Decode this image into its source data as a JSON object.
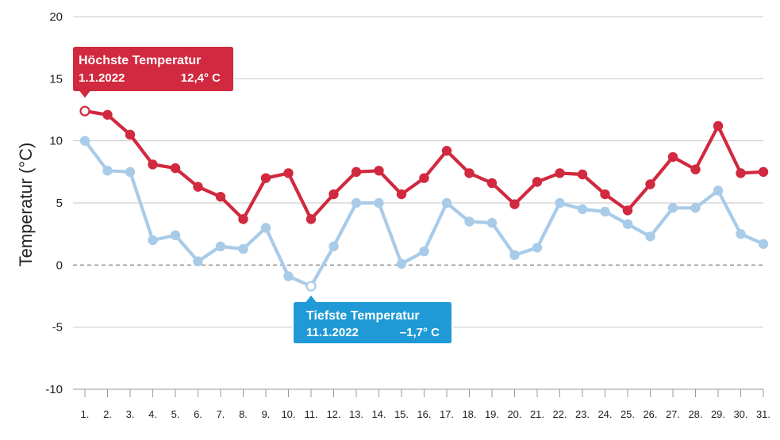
{
  "chart_data": {
    "type": "line",
    "ylabel": "Temperatur (°C)",
    "xlabel": "",
    "ylim": [
      -10,
      20
    ],
    "yticks": [
      -10,
      -5,
      0,
      5,
      10,
      15,
      20
    ],
    "grid": true,
    "zero_line": "dashed",
    "categories": [
      "1.",
      "2.",
      "3.",
      "4.",
      "5.",
      "6.",
      "7.",
      "8.",
      "9.",
      "10.",
      "11.",
      "12.",
      "13.",
      "14.",
      "15.",
      "16.",
      "17.",
      "18.",
      "19.",
      "20.",
      "21.",
      "22.",
      "23.",
      "24.",
      "25.",
      "26.",
      "27.",
      "28.",
      "29.",
      "30.",
      "31."
    ],
    "series": [
      {
        "color": "#d1293f",
        "values": [
          12.4,
          12.1,
          10.5,
          8.1,
          7.8,
          6.3,
          5.5,
          3.7,
          7.0,
          7.4,
          3.7,
          5.7,
          7.5,
          7.6,
          5.7,
          7.0,
          9.2,
          7.4,
          6.6,
          4.9,
          6.7,
          7.4,
          7.3,
          5.7,
          4.4,
          6.5,
          8.7,
          7.7,
          11.2,
          7.4,
          7.5
        ]
      },
      {
        "color": "#a8cbe8",
        "values": [
          10.0,
          7.6,
          7.5,
          2.0,
          2.4,
          0.3,
          1.5,
          1.3,
          3.0,
          -0.9,
          -1.7,
          1.5,
          5.0,
          5.0,
          0.1,
          1.1,
          5.0,
          3.5,
          3.4,
          0.8,
          1.4,
          5.0,
          4.5,
          4.3,
          3.3,
          2.3,
          4.6,
          4.6,
          6.0,
          2.5,
          1.7
        ]
      }
    ],
    "annotations": [
      {
        "title": "Höchste Temperatur",
        "date": "1.1.2022",
        "value": "12,4° C",
        "series": 0,
        "index": 0,
        "color": "#d1293f"
      },
      {
        "title": "Tiefste Temperatur",
        "date": "11.1.2022",
        "value": "–1,7° C",
        "series": 1,
        "index": 10,
        "color": "#1f9ad6"
      }
    ]
  }
}
